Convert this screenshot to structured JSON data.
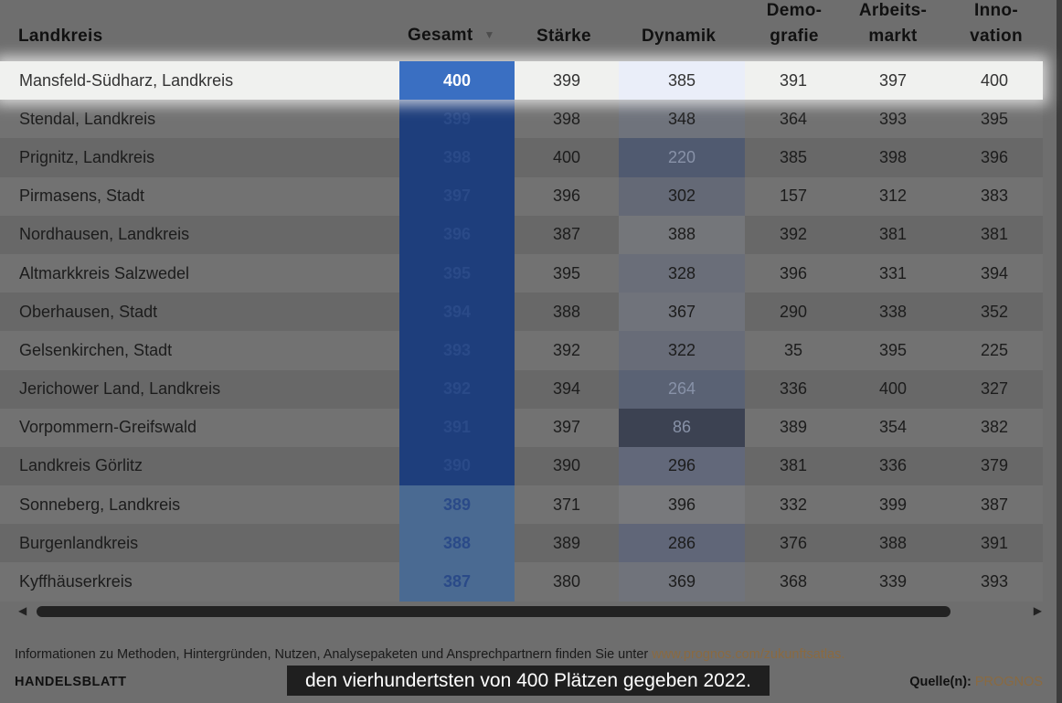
{
  "headers": {
    "name": "Landkreis",
    "gesamt": "Gesamt",
    "staerke": "Stärke",
    "dynamik": "Dynamik",
    "demografie": [
      "Demo-",
      "grafie"
    ],
    "arbeitsmarkt": [
      "Arbeits-",
      "markt"
    ],
    "innovation": [
      "Inno-",
      "vation"
    ],
    "sort_icon": "▼"
  },
  "colors": {
    "gesamt_highlight": "#3a6fc2",
    "gesamt_dark": "#1e3e7c",
    "gesamt_light": "#4a6a92",
    "source_link": "#8a6a40"
  },
  "rows": [
    {
      "name": "Mansfeld-Südharz, Landkreis",
      "gesamt": "400",
      "staerke": "399",
      "dynamik": "385",
      "demografie": "391",
      "arbeitsmarkt": "397",
      "innovation": "400",
      "highlight": true,
      "gesamt_color": "#3a6fc2",
      "dynamik_color": "#eaeef9",
      "dynamik_text": "#333333"
    },
    {
      "name": "Stendal, Landkreis",
      "gesamt": "399",
      "staerke": "398",
      "dynamik": "348",
      "demografie": "364",
      "arbeitsmarkt": "393",
      "innovation": "395",
      "gesamt_color": "#1e3e7c",
      "dynamik_color": "#6f737c",
      "dynamik_text": "#1c1c1c"
    },
    {
      "name": "Prignitz, Landkreis",
      "gesamt": "398",
      "staerke": "400",
      "dynamik": "220",
      "demografie": "385",
      "arbeitsmarkt": "398",
      "innovation": "396",
      "gesamt_color": "#1e3e7c",
      "dynamik_color": "#505a70",
      "dynamik_text": "#8892a8"
    },
    {
      "name": "Pirmasens, Stadt",
      "gesamt": "397",
      "staerke": "396",
      "dynamik": "302",
      "demografie": "157",
      "arbeitsmarkt": "312",
      "innovation": "383",
      "gesamt_color": "#1e3e7c",
      "dynamik_color": "#646976",
      "dynamik_text": "#1c1c1c"
    },
    {
      "name": "Nordhausen, Landkreis",
      "gesamt": "396",
      "staerke": "387",
      "dynamik": "388",
      "demografie": "392",
      "arbeitsmarkt": "381",
      "innovation": "381",
      "gesamt_color": "#1e3e7c",
      "dynamik_color": "#74767a",
      "dynamik_text": "#1c1c1c"
    },
    {
      "name": "Altmarkkreis Salzwedel",
      "gesamt": "395",
      "staerke": "395",
      "dynamik": "328",
      "demografie": "396",
      "arbeitsmarkt": "331",
      "innovation": "394",
      "gesamt_color": "#1e3e7c",
      "dynamik_color": "#6a6e79",
      "dynamik_text": "#1c1c1c"
    },
    {
      "name": "Oberhausen, Stadt",
      "gesamt": "394",
      "staerke": "388",
      "dynamik": "367",
      "demografie": "290",
      "arbeitsmarkt": "338",
      "innovation": "352",
      "gesamt_color": "#1e3e7c",
      "dynamik_color": "#70737b",
      "dynamik_text": "#1c1c1c"
    },
    {
      "name": "Gelsenkirchen, Stadt",
      "gesamt": "393",
      "staerke": "392",
      "dynamik": "322",
      "demografie": "35",
      "arbeitsmarkt": "395",
      "innovation": "225",
      "gesamt_color": "#1e3e7c",
      "dynamik_color": "#686c78",
      "dynamik_text": "#1c1c1c"
    },
    {
      "name": "Jerichower Land, Landkreis",
      "gesamt": "392",
      "staerke": "394",
      "dynamik": "264",
      "demografie": "336",
      "arbeitsmarkt": "400",
      "innovation": "327",
      "gesamt_color": "#1e3e7c",
      "dynamik_color": "#5a6274",
      "dynamik_text": "#8892a8"
    },
    {
      "name": "Vorpommern-Greifswald",
      "gesamt": "391",
      "staerke": "397",
      "dynamik": "86",
      "demografie": "389",
      "arbeitsmarkt": "354",
      "innovation": "382",
      "gesamt_color": "#1e3e7c",
      "dynamik_color": "#3c4252",
      "dynamik_text": "#8892a8"
    },
    {
      "name": "Landkreis Görlitz",
      "gesamt": "390",
      "staerke": "390",
      "dynamik": "296",
      "demografie": "381",
      "arbeitsmarkt": "336",
      "innovation": "379",
      "gesamt_color": "#1e3e7c",
      "dynamik_color": "#62687a",
      "dynamik_text": "#1c1c1c"
    },
    {
      "name": "Sonneberg, Landkreis",
      "gesamt": "389",
      "staerke": "371",
      "dynamik": "396",
      "demografie": "332",
      "arbeitsmarkt": "399",
      "innovation": "387",
      "gesamt_color": "#4a6a92",
      "dynamik_color": "#78797c",
      "dynamik_text": "#1c1c1c"
    },
    {
      "name": "Burgenlandkreis",
      "gesamt": "388",
      "staerke": "389",
      "dynamik": "286",
      "demografie": "376",
      "arbeitsmarkt": "388",
      "innovation": "391",
      "gesamt_color": "#4a6a92",
      "dynamik_color": "#606678",
      "dynamik_text": "#1c1c1c"
    },
    {
      "name": "Kyffhäuserkreis",
      "gesamt": "387",
      "staerke": "380",
      "dynamik": "369",
      "demografie": "368",
      "arbeitsmarkt": "339",
      "innovation": "393",
      "gesamt_color": "#4a6a92",
      "dynamik_color": "#70737b",
      "dynamik_text": "#1c1c1c"
    }
  ],
  "scrollbar": {
    "left_arrow": "◀",
    "right_arrow": "▶"
  },
  "footer": {
    "info_text": "Informationen zu Methoden, Hintergründen, Nutzen, Analysepaketen und Ansprechpartnern finden Sie unter ",
    "info_link": "www.prognos.com/zukunftsatlas.",
    "brand": "HANDELSBLATT",
    "source_label": "Quelle(n):",
    "source_value": "PROGNOS"
  },
  "subtitle": "den vierhundertsten von 400 Plätzen gegeben 2022."
}
